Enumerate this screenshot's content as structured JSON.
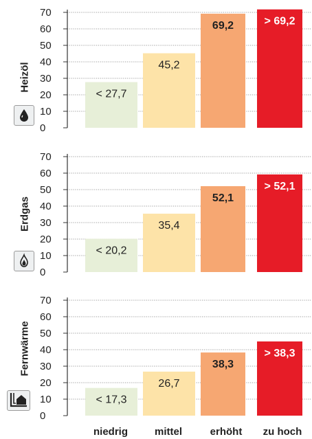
{
  "categories": [
    "niedrig",
    "mittel",
    "erhöht",
    "zu hoch"
  ],
  "colors": {
    "niedrig": "#e7efd8",
    "mittel": "#fde3a8",
    "erhoeht": "#f6a772",
    "zu_hoch": "#e61c27",
    "grid": "#7a7a7a",
    "axis": "#333333",
    "icon_bg": "#eef0f1",
    "icon_border": "#9a9a9a"
  },
  "panels": [
    {
      "label": "Heizöl",
      "icon": "oil-drop-icon"
    },
    {
      "label": "Erdgas",
      "icon": "gas-flame-icon"
    },
    {
      "label": "Fernwärme",
      "icon": "district-heating-house-icon"
    }
  ],
  "chart_data": [
    {
      "type": "bar",
      "categories": [
        "niedrig",
        "mittel",
        "erhöht",
        "zu hoch"
      ],
      "values": [
        27.7,
        45.2,
        69.2,
        72.5
      ],
      "data_labels": [
        "< 27,7",
        "45,2",
        "69,2",
        "> 69,2"
      ],
      "ylabel": "Heizöl",
      "ylim": [
        0,
        70
      ],
      "yticks": [
        "0",
        "10",
        "20",
        "30",
        "40",
        "50",
        "60",
        "70"
      ],
      "grid": "horizontal dotted"
    },
    {
      "type": "bar",
      "categories": [
        "niedrig",
        "mittel",
        "erhöht",
        "zu hoch"
      ],
      "values": [
        20.2,
        35.4,
        52.1,
        59.2
      ],
      "data_labels": [
        "< 20,2",
        "35,4",
        "52,1",
        "> 52,1"
      ],
      "ylabel": "Erdgas",
      "ylim": [
        0,
        70
      ],
      "yticks": [
        "0",
        "10",
        "20",
        "30",
        "40",
        "50",
        "60",
        "70"
      ],
      "grid": "horizontal dotted"
    },
    {
      "type": "bar",
      "categories": [
        "niedrig",
        "mittel",
        "erhöht",
        "zu hoch"
      ],
      "values": [
        16.8,
        26.7,
        38.3,
        45.0
      ],
      "data_labels": [
        "< 17,3",
        "26,7",
        "38,3",
        "> 38,3"
      ],
      "ylabel": "Fernwärme",
      "ylim": [
        0,
        70
      ],
      "yticks": [
        "0",
        "10",
        "20",
        "30",
        "40",
        "50",
        "60",
        "70"
      ],
      "grid": "horizontal dotted"
    }
  ]
}
